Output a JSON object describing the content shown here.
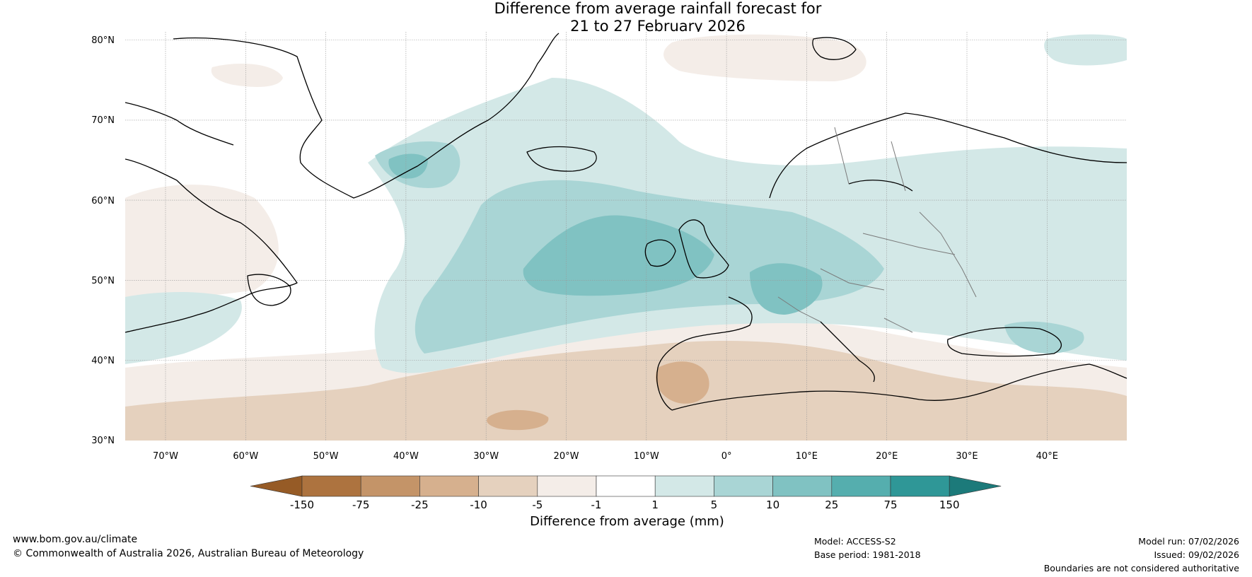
{
  "title": {
    "line1": "Difference from average rainfall forecast for",
    "line2": "21 to 27 February 2026"
  },
  "map": {
    "lat_range": [
      30,
      80
    ],
    "lon_range": [
      -75,
      50
    ],
    "lat_ticks": [
      "30°N",
      "40°N",
      "50°N",
      "60°N",
      "70°N",
      "80°N"
    ],
    "lon_ticks": [
      "70°W",
      "60°W",
      "50°W",
      "40°W",
      "30°W",
      "20°W",
      "10°W",
      "0°",
      "10°E",
      "20°E",
      "30°E",
      "40°E"
    ]
  },
  "colorbar": {
    "unit_label": "Difference from average (mm)",
    "tick_labels": [
      "-150",
      "-75",
      "-25",
      "-10",
      "-5",
      "-1",
      "1",
      "5",
      "10",
      "25",
      "75",
      "150"
    ],
    "colors": [
      "#965b26",
      "#ad733f",
      "#c49468",
      "#d6b08e",
      "#e5d1be",
      "#f4ede8",
      "#ffffff",
      "#d3e8e7",
      "#a9d5d5",
      "#80c2c2",
      "#55aeae",
      "#2f9797",
      "#1c7a7a"
    ]
  },
  "footer": {
    "website": "www.bom.gov.au/climate",
    "copyright": "© Commonwealth of Australia 2026, Australian Bureau of Meteorology",
    "model": "Model: ACCESS-S2",
    "base_period": "Base period: 1981-2018",
    "model_run": "Model run: 07/02/2026",
    "issued": "Issued: 09/02/2026",
    "disclaimer": "Boundaries are not considered authoritative"
  }
}
